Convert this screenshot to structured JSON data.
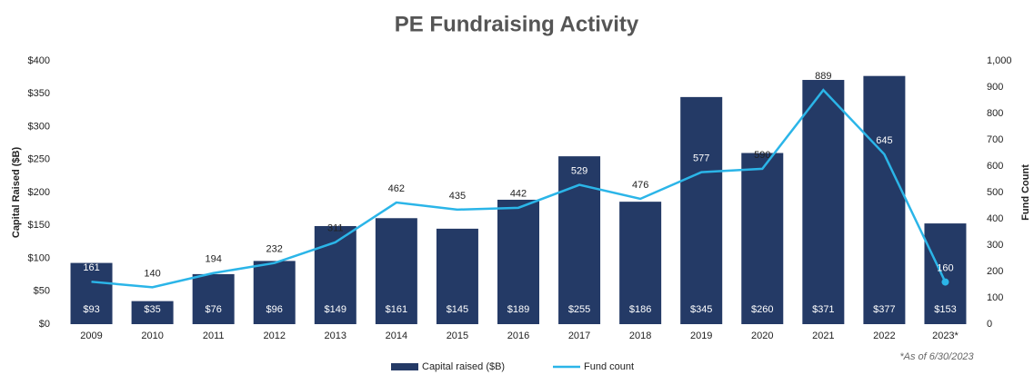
{
  "chart_data": {
    "type": "bar",
    "title": "PE Fundraising Activity",
    "ylabel": "Capital Raised ($B)",
    "y2label": "Fund Count",
    "annotations": [
      "*As of 6/30/2023"
    ],
    "categories": [
      "2009",
      "2010",
      "2011",
      "2012",
      "2013",
      "2014",
      "2015",
      "2016",
      "2017",
      "2018",
      "2019",
      "2020",
      "2021",
      "2022",
      "2023*"
    ],
    "series": [
      {
        "name": "Capital raised ($B)",
        "type": "bar",
        "color": "#243a66",
        "values": [
          93,
          35,
          76,
          96,
          149,
          161,
          145,
          189,
          255,
          186,
          345,
          260,
          371,
          377,
          153
        ],
        "value_labels": [
          "$93",
          "$35",
          "$76",
          "$96",
          "$149",
          "$161",
          "$145",
          "$189",
          "$255",
          "$186",
          "$345",
          "$260",
          "$371",
          "$377",
          "$153"
        ]
      },
      {
        "name": "Fund count",
        "type": "line",
        "axis": "y2",
        "color": "#2bb5e8",
        "values": [
          161,
          140,
          194,
          232,
          311,
          462,
          435,
          442,
          529,
          476,
          577,
          590,
          889,
          645,
          160
        ]
      }
    ],
    "ylim": [
      0,
      400
    ],
    "yticks": [
      {
        "value": 0,
        "label": "$0"
      },
      {
        "value": 50,
        "label": "$50"
      },
      {
        "value": 100,
        "label": "$100"
      },
      {
        "value": 150,
        "label": "$150"
      },
      {
        "value": 200,
        "label": "$200"
      },
      {
        "value": 250,
        "label": "$250"
      },
      {
        "value": 300,
        "label": "$300"
      },
      {
        "value": 350,
        "label": "$350"
      },
      {
        "value": 400,
        "label": "$400"
      }
    ],
    "y2lim": [
      0,
      1000
    ],
    "y2ticks": [
      0,
      100,
      200,
      300,
      400,
      500,
      600,
      700,
      800,
      900,
      {
        "value": 1000,
        "label": "1,000"
      }
    ],
    "legend": "bottom"
  }
}
